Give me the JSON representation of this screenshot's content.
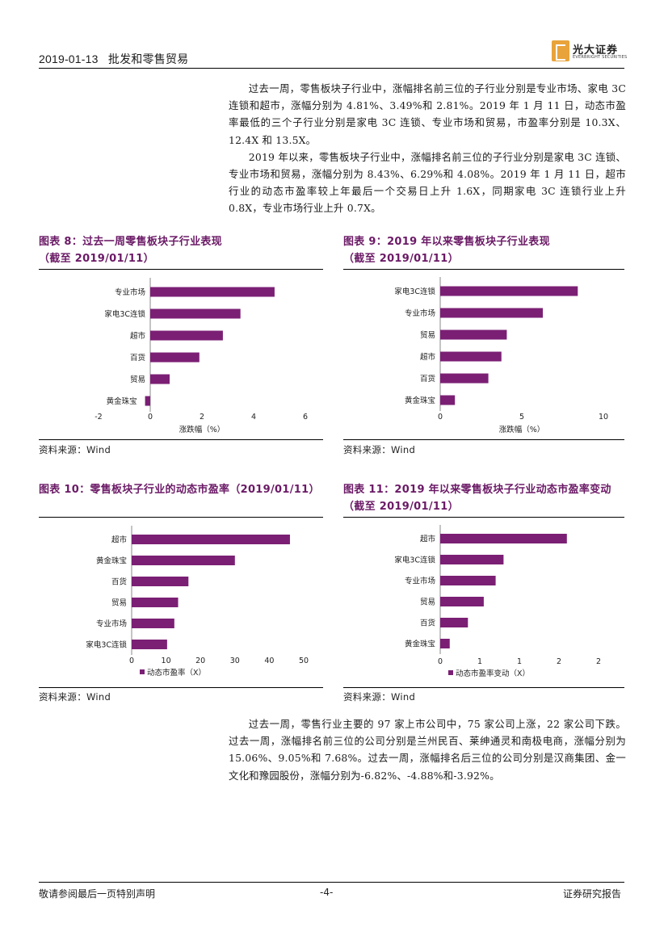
{
  "header": {
    "date": "2019-01-13",
    "section": "批发和零售贸易",
    "logo_cn": "光大证券",
    "logo_en": "EVERBRIGHT SECURITIES"
  },
  "intro": [
    "过去一周，零售板块子行业中，涨幅排名前三位的子行业分别是专业市场、家电 3C 连锁和超市，涨幅分别为 4.81%、3.49%和 2.81%。2019 年 1 月 11 日，动态市盈率最低的三个子行业分别是家电 3C 连锁、专业市场和贸易，市盈率分别是 10.3X、12.4X 和 13.5X。",
    "2019 年以来，零售板块子行业中，涨幅排名前三位的子行业分别是家电 3C 连锁、专业市场和贸易，涨幅分别为 8.43%、6.29%和 4.08%。2019 年 1 月 11 日，超市行业的动态市盈率较上年最后一个交易日上升 1.6X，同期家电 3C 连锁行业上升 0.8X，专业市场行业上升 0.7X。"
  ],
  "figures": {
    "fig8": {
      "title": "图表 8：过去一周零售板块子行业表现",
      "title2": "（截至 2019/01/11）",
      "source": "资料来源：Wind"
    },
    "fig9": {
      "title": "图表 9：2019 年以来零售板块子行业表现",
      "title2": "（截至 2019/01/11）",
      "source": "资料来源：Wind"
    },
    "fig10": {
      "title": "图表 10：零售板块子行业的动态市盈率（2019/01/11）",
      "source": "资料来源：Wind"
    },
    "fig11": {
      "title": "图表 11：2019 年以来零售板块子行业动态市盈率变动",
      "title2": "（截至 2019/01/11）",
      "source": "资料来源：Wind"
    }
  },
  "chart_data": [
    {
      "id": "fig8",
      "type": "bar",
      "orientation": "horizontal",
      "categories": [
        "专业市场",
        "家电3C连锁",
        "超市",
        "百货",
        "贸易",
        "黄金珠宝"
      ],
      "values": [
        4.81,
        3.49,
        2.81,
        1.9,
        0.75,
        -0.2
      ],
      "xlim": [
        -2,
        6
      ],
      "xticks": [
        "-2",
        "0",
        "2",
        "4",
        "6"
      ],
      "xlabel": "涨跌幅（%）",
      "legend": "",
      "color": "#7b1f74"
    },
    {
      "id": "fig9",
      "type": "bar",
      "orientation": "horizontal",
      "categories": [
        "家电3C连锁",
        "专业市场",
        "贸易",
        "超市",
        "百货",
        "黄金珠宝"
      ],
      "values": [
        8.43,
        6.29,
        4.08,
        3.75,
        2.95,
        0.9
      ],
      "xlim": [
        0,
        10
      ],
      "xticks": [
        "0",
        "5",
        "10"
      ],
      "xlabel": "涨跌幅（%）",
      "legend": "",
      "color": "#7b1f74"
    },
    {
      "id": "fig10",
      "type": "bar",
      "orientation": "horizontal",
      "categories": [
        "超市",
        "黄金珠宝",
        "百货",
        "贸易",
        "专业市场",
        "家电3C连锁"
      ],
      "values": [
        46,
        30,
        16.5,
        13.5,
        12.4,
        10.3
      ],
      "xlim": [
        0,
        50
      ],
      "xticks": [
        "0",
        "10",
        "20",
        "30",
        "40",
        "50"
      ],
      "xlabel": "",
      "legend": "动态市盈率（X）",
      "color": "#7b1f74"
    },
    {
      "id": "fig11",
      "type": "bar",
      "orientation": "horizontal",
      "categories": [
        "超市",
        "家电3C连锁",
        "专业市场",
        "贸易",
        "百货",
        "黄金珠宝"
      ],
      "values": [
        1.6,
        0.8,
        0.7,
        0.55,
        0.35,
        0.12
      ],
      "xlim": [
        0,
        2
      ],
      "xticks": [
        "0",
        "1",
        "1",
        "2",
        "2"
      ],
      "xtick_values": [
        0,
        0.5,
        1,
        1.5,
        2
      ],
      "xlabel": "",
      "legend": "动态市盈率变动（X）",
      "color": "#7b1f74"
    }
  ],
  "outro": "过去一周，零售行业主要的 97 家上市公司中，75 家公司上涨，22 家公司下跌。过去一周，涨幅排名前三位的公司分别是兰州民百、莱绅通灵和南极电商，涨幅分别为 15.06%、9.05%和 7.68%。过去一周，涨幅排名后三位的公司分别是汉商集团、金一文化和豫园股份，涨幅分别为-6.82%、-4.88%和-3.92%。",
  "footer": {
    "left": "敬请参阅最后一页特别声明",
    "page": "-4-",
    "right": "证券研究报告"
  }
}
